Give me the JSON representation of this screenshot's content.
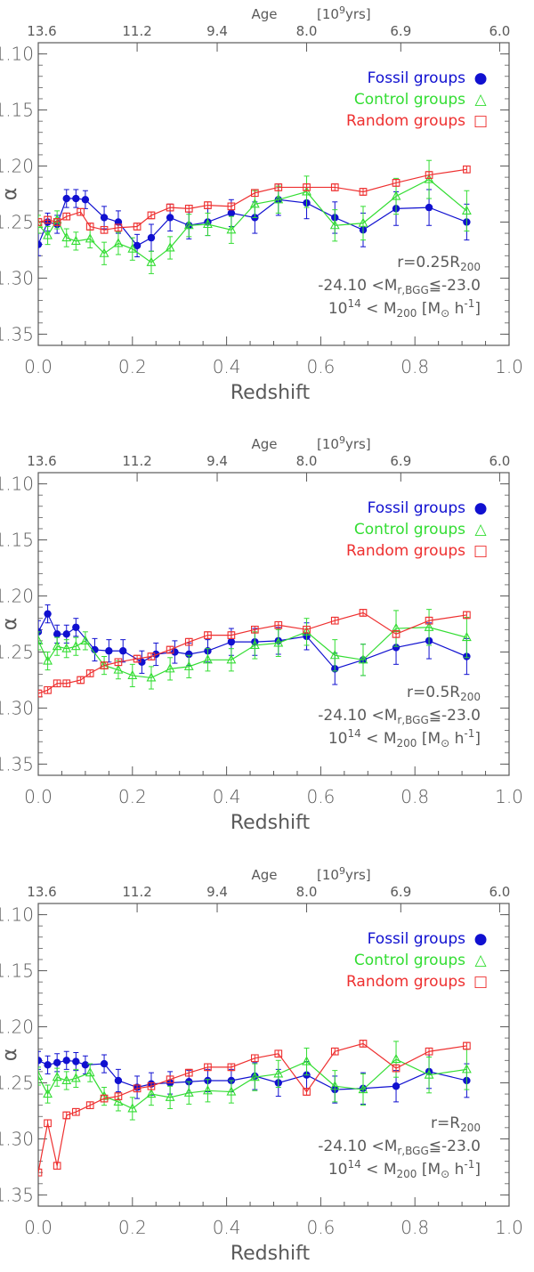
{
  "colors": {
    "fossil": "#1010d0",
    "control": "#33dd33",
    "random": "#ee3030",
    "axis": "#5a5a5a"
  },
  "chart_data": [
    {
      "type": "line",
      "xlabel": "Redshift",
      "ylabel": "α",
      "xlim": [
        0.0,
        1.0
      ],
      "ylim": [
        -1.36,
        -1.09
      ],
      "xticks": [
        "0.0",
        "0.2",
        "0.4",
        "0.6",
        "0.8",
        "1.0"
      ],
      "yticks": [
        "-1.10",
        "-1.15",
        "-1.20",
        "-1.25",
        "-1.30",
        "-1.35"
      ],
      "top_axis": {
        "label": "Age",
        "unit_pre": "[10",
        "unit_sup": "9",
        "unit_post": "yrs]",
        "ticks": [
          {
            "label": "13.6",
            "z": 0.0
          },
          {
            "label": "11.2",
            "z": 0.21
          },
          {
            "label": "9.4",
            "z": 0.38
          },
          {
            "label": "8.0",
            "z": 0.57
          },
          {
            "label": "6.9",
            "z": 0.77
          },
          {
            "label": "6.0",
            "z": 0.98
          }
        ]
      },
      "legend": {
        "placement": "top-right",
        "entries": [
          {
            "label": "Fossil groups",
            "marker": "●",
            "series": "fossil"
          },
          {
            "label": "Control groups",
            "marker": "△",
            "series": "control"
          },
          {
            "label": "Random groups",
            "marker": "□",
            "series": "random"
          }
        ]
      },
      "annotation": {
        "line1_pre": "r=0.25R",
        "line1_sub": "200",
        "line2": "-24.10 <M",
        "line2_sub": "r,BGG",
        "line2_post": "≦-23.0",
        "line3_pre": "10",
        "line3_sup": "14",
        "line3_mid": " < M",
        "line3_sub": "200",
        "line3_post": "  [M",
        "line3_sun": "⊙",
        "line3_end": " h",
        "line3_exp": "-1",
        "line3_close": "]"
      },
      "series": [
        {
          "name": "Fossil groups",
          "key": "fossil",
          "marker": "circle",
          "x": [
            0.0,
            0.02,
            0.04,
            0.06,
            0.08,
            0.1,
            0.14,
            0.17,
            0.21,
            0.24,
            0.28,
            0.32,
            0.36,
            0.41,
            0.46,
            0.51,
            0.57,
            0.63,
            0.69,
            0.76,
            0.83,
            0.91
          ],
          "y": [
            -1.27,
            -1.25,
            -1.252,
            -1.229,
            -1.229,
            -1.23,
            -1.246,
            -1.25,
            -1.271,
            -1.264,
            -1.246,
            -1.253,
            -1.25,
            -1.242,
            -1.246,
            -1.23,
            -1.233,
            -1.246,
            -1.257,
            -1.238,
            -1.237,
            -1.25
          ],
          "err": [
            0.01,
            0.008,
            0.008,
            0.008,
            0.008,
            0.008,
            0.01,
            0.01,
            0.01,
            0.012,
            0.012,
            0.012,
            0.012,
            0.012,
            0.014,
            0.014,
            0.014,
            0.014,
            0.015,
            0.015,
            0.016,
            0.016
          ]
        },
        {
          "name": "Control groups",
          "key": "control",
          "marker": "triangle",
          "x": [
            0.0,
            0.02,
            0.04,
            0.06,
            0.08,
            0.11,
            0.14,
            0.17,
            0.2,
            0.24,
            0.28,
            0.32,
            0.36,
            0.41,
            0.46,
            0.51,
            0.57,
            0.63,
            0.69,
            0.76,
            0.83,
            0.91
          ],
          "y": [
            -1.252,
            -1.262,
            -1.248,
            -1.264,
            -1.267,
            -1.265,
            -1.278,
            -1.269,
            -1.274,
            -1.286,
            -1.273,
            -1.253,
            -1.252,
            -1.257,
            -1.234,
            -1.23,
            -1.223,
            -1.253,
            -1.251,
            -1.227,
            -1.212,
            -1.24
          ],
          "err": [
            0.008,
            0.008,
            0.008,
            0.008,
            0.008,
            0.008,
            0.01,
            0.01,
            0.01,
            0.01,
            0.01,
            0.01,
            0.01,
            0.012,
            0.012,
            0.012,
            0.014,
            0.014,
            0.015,
            0.016,
            0.017,
            0.018
          ]
        },
        {
          "name": "Random groups",
          "key": "random",
          "marker": "square",
          "x": [
            0.0,
            0.02,
            0.04,
            0.06,
            0.09,
            0.11,
            0.14,
            0.17,
            0.21,
            0.24,
            0.28,
            0.32,
            0.36,
            0.41,
            0.46,
            0.51,
            0.57,
            0.63,
            0.69,
            0.76,
            0.83,
            0.91
          ],
          "y": [
            -1.25,
            -1.248,
            -1.25,
            -1.245,
            -1.241,
            -1.254,
            -1.257,
            -1.255,
            -1.254,
            -1.244,
            -1.237,
            -1.238,
            -1.235,
            -1.236,
            -1.224,
            -1.219,
            -1.219,
            -1.219,
            -1.223,
            -1.215,
            -1.208,
            -1.203
          ],
          "err": [
            0.003,
            0.003,
            0.003,
            0.003,
            0.003,
            0.003,
            0.003,
            0.003,
            0.003,
            0.003,
            0.003,
            0.003,
            0.003,
            0.003,
            0.003,
            0.003,
            0.003,
            0.003,
            0.003,
            0.003,
            0.003,
            0.003
          ]
        }
      ]
    },
    {
      "type": "line",
      "xlabel": "Redshift",
      "ylabel": "α",
      "xlim": [
        0.0,
        1.0
      ],
      "ylim": [
        -1.36,
        -1.09
      ],
      "xticks": [
        "0.0",
        "0.2",
        "0.4",
        "0.6",
        "0.8",
        "1.0"
      ],
      "yticks": [
        "-1.10",
        "-1.15",
        "-1.20",
        "-1.25",
        "-1.30",
        "-1.35"
      ],
      "top_axis": {
        "label": "Age",
        "unit_pre": "[10",
        "unit_sup": "9",
        "unit_post": "yrs]",
        "ticks": [
          {
            "label": "13.6",
            "z": 0.0
          },
          {
            "label": "11.2",
            "z": 0.21
          },
          {
            "label": "9.4",
            "z": 0.38
          },
          {
            "label": "8.0",
            "z": 0.57
          },
          {
            "label": "6.9",
            "z": 0.77
          },
          {
            "label": "6.0",
            "z": 0.98
          }
        ]
      },
      "legend": {
        "placement": "top-right",
        "entries": [
          {
            "label": "Fossil groups",
            "marker": "●",
            "series": "fossil"
          },
          {
            "label": "Control groups",
            "marker": "△",
            "series": "control"
          },
          {
            "label": "Random groups",
            "marker": "□",
            "series": "random"
          }
        ]
      },
      "annotation": {
        "line1_pre": "r=0.5R",
        "line1_sub": "200",
        "line2": "-24.10 <M",
        "line2_sub": "r,BGG",
        "line2_post": "≦-23.0",
        "line3_pre": "10",
        "line3_sup": "14",
        "line3_mid": " < M",
        "line3_sub": "200",
        "line3_post": "  [M",
        "line3_sun": "⊙",
        "line3_end": " h",
        "line3_exp": "-1",
        "line3_close": "]"
      },
      "series": [
        {
          "name": "Fossil groups",
          "key": "fossil",
          "marker": "circle",
          "x": [
            0.0,
            0.02,
            0.04,
            0.06,
            0.08,
            0.12,
            0.15,
            0.18,
            0.22,
            0.25,
            0.29,
            0.32,
            0.36,
            0.41,
            0.46,
            0.51,
            0.57,
            0.63,
            0.69,
            0.76,
            0.83,
            0.91
          ],
          "y": [
            -1.232,
            -1.216,
            -1.234,
            -1.234,
            -1.228,
            -1.248,
            -1.249,
            -1.249,
            -1.259,
            -1.252,
            -1.25,
            -1.252,
            -1.249,
            -1.241,
            -1.241,
            -1.24,
            -1.236,
            -1.265,
            -1.257,
            -1.246,
            -1.24,
            -1.254
          ],
          "err": [
            0.01,
            0.008,
            0.008,
            0.008,
            0.008,
            0.01,
            0.01,
            0.01,
            0.01,
            0.01,
            0.01,
            0.01,
            0.01,
            0.012,
            0.012,
            0.012,
            0.012,
            0.014,
            0.014,
            0.015,
            0.016,
            0.016
          ]
        },
        {
          "name": "Control groups",
          "key": "control",
          "marker": "triangle",
          "x": [
            0.0,
            0.02,
            0.04,
            0.06,
            0.08,
            0.1,
            0.14,
            0.17,
            0.2,
            0.24,
            0.28,
            0.32,
            0.36,
            0.41,
            0.46,
            0.51,
            0.57,
            0.63,
            0.69,
            0.76,
            0.83,
            0.91
          ],
          "y": [
            -1.24,
            -1.258,
            -1.245,
            -1.247,
            -1.245,
            -1.24,
            -1.262,
            -1.266,
            -1.271,
            -1.273,
            -1.265,
            -1.263,
            -1.257,
            -1.257,
            -1.244,
            -1.242,
            -1.232,
            -1.253,
            -1.257,
            -1.229,
            -1.228,
            -1.237
          ],
          "err": [
            0.008,
            0.008,
            0.008,
            0.008,
            0.008,
            0.008,
            0.008,
            0.008,
            0.01,
            0.01,
            0.01,
            0.01,
            0.01,
            0.01,
            0.012,
            0.012,
            0.012,
            0.014,
            0.014,
            0.016,
            0.016,
            0.018
          ]
        },
        {
          "name": "Random groups",
          "key": "random",
          "marker": "square",
          "x": [
            0.0,
            0.02,
            0.04,
            0.06,
            0.09,
            0.11,
            0.14,
            0.17,
            0.21,
            0.24,
            0.28,
            0.32,
            0.36,
            0.41,
            0.46,
            0.51,
            0.57,
            0.63,
            0.69,
            0.76,
            0.83,
            0.91
          ],
          "y": [
            -1.287,
            -1.284,
            -1.278,
            -1.278,
            -1.275,
            -1.269,
            -1.262,
            -1.259,
            -1.256,
            -1.254,
            -1.248,
            -1.241,
            -1.235,
            -1.235,
            -1.23,
            -1.226,
            -1.23,
            -1.222,
            -1.215,
            -1.234,
            -1.222,
            -1.217
          ],
          "err": [
            0.003,
            0.003,
            0.003,
            0.003,
            0.003,
            0.003,
            0.003,
            0.003,
            0.003,
            0.003,
            0.003,
            0.003,
            0.003,
            0.003,
            0.003,
            0.003,
            0.003,
            0.003,
            0.003,
            0.003,
            0.003,
            0.003
          ]
        }
      ]
    },
    {
      "type": "line",
      "xlabel": "Redshift",
      "ylabel": "α",
      "xlim": [
        0.0,
        1.0
      ],
      "ylim": [
        -1.36,
        -1.09
      ],
      "xticks": [
        "0.0",
        "0.2",
        "0.4",
        "0.6",
        "0.8",
        "1.0"
      ],
      "yticks": [
        "-1.10",
        "-1.15",
        "-1.20",
        "-1.25",
        "-1.30",
        "-1.35"
      ],
      "top_axis": {
        "label": "Age",
        "unit_pre": "[10",
        "unit_sup": "9",
        "unit_post": "yrs]",
        "ticks": [
          {
            "label": "13.6",
            "z": 0.0
          },
          {
            "label": "11.2",
            "z": 0.21
          },
          {
            "label": "9.4",
            "z": 0.38
          },
          {
            "label": "8.0",
            "z": 0.57
          },
          {
            "label": "6.9",
            "z": 0.77
          },
          {
            "label": "6.0",
            "z": 0.98
          }
        ]
      },
      "legend": {
        "placement": "top-right",
        "entries": [
          {
            "label": "Fossil groups",
            "marker": "●",
            "series": "fossil"
          },
          {
            "label": "Control groups",
            "marker": "△",
            "series": "control"
          },
          {
            "label": "Random groups",
            "marker": "□",
            "series": "random"
          }
        ]
      },
      "annotation": {
        "line1_pre": "r=R",
        "line1_sub": "200",
        "line2": "-24.10 <M",
        "line2_sub": "r,BGG",
        "line2_post": "≦-23.0",
        "line3_pre": "10",
        "line3_sup": "14",
        "line3_mid": " < M",
        "line3_sub": "200",
        "line3_post": "  [M",
        "line3_sun": "⊙",
        "line3_end": " h",
        "line3_exp": "-1",
        "line3_close": "]"
      },
      "series": [
        {
          "name": "Fossil groups",
          "key": "fossil",
          "marker": "circle",
          "x": [
            0.0,
            0.02,
            0.04,
            0.06,
            0.08,
            0.1,
            0.14,
            0.17,
            0.21,
            0.24,
            0.28,
            0.32,
            0.36,
            0.41,
            0.46,
            0.51,
            0.57,
            0.63,
            0.69,
            0.76,
            0.83,
            0.91
          ],
          "y": [
            -1.23,
            -1.234,
            -1.232,
            -1.23,
            -1.231,
            -1.234,
            -1.233,
            -1.248,
            -1.254,
            -1.251,
            -1.25,
            -1.249,
            -1.248,
            -1.248,
            -1.244,
            -1.25,
            -1.243,
            -1.256,
            -1.255,
            -1.253,
            -1.24,
            -1.248
          ],
          "err": [
            0.008,
            0.008,
            0.008,
            0.008,
            0.008,
            0.008,
            0.008,
            0.01,
            0.01,
            0.01,
            0.01,
            0.01,
            0.01,
            0.01,
            0.012,
            0.012,
            0.012,
            0.012,
            0.014,
            0.014,
            0.015,
            0.015
          ]
        },
        {
          "name": "Control groups",
          "key": "control",
          "marker": "triangle",
          "x": [
            0.0,
            0.02,
            0.04,
            0.06,
            0.08,
            0.11,
            0.14,
            0.17,
            0.2,
            0.24,
            0.28,
            0.32,
            0.36,
            0.41,
            0.46,
            0.51,
            0.57,
            0.63,
            0.69,
            0.76,
            0.83,
            0.91
          ],
          "y": [
            -1.244,
            -1.26,
            -1.245,
            -1.248,
            -1.246,
            -1.241,
            -1.262,
            -1.267,
            -1.273,
            -1.26,
            -1.263,
            -1.259,
            -1.257,
            -1.258,
            -1.245,
            -1.242,
            -1.231,
            -1.253,
            -1.256,
            -1.229,
            -1.243,
            -1.238
          ],
          "err": [
            0.008,
            0.008,
            0.008,
            0.008,
            0.008,
            0.008,
            0.008,
            0.008,
            0.01,
            0.01,
            0.01,
            0.01,
            0.01,
            0.01,
            0.012,
            0.012,
            0.012,
            0.014,
            0.014,
            0.016,
            0.016,
            0.018
          ]
        },
        {
          "name": "Random groups",
          "key": "random",
          "marker": "square",
          "x": [
            0.0,
            0.02,
            0.04,
            0.06,
            0.08,
            0.11,
            0.14,
            0.17,
            0.21,
            0.24,
            0.28,
            0.32,
            0.36,
            0.41,
            0.46,
            0.51,
            0.57,
            0.63,
            0.69,
            0.76,
            0.83,
            0.91
          ],
          "y": [
            -1.33,
            -1.286,
            -1.324,
            -1.279,
            -1.276,
            -1.27,
            -1.264,
            -1.262,
            -1.255,
            -1.253,
            -1.247,
            -1.241,
            -1.236,
            -1.236,
            -1.228,
            -1.224,
            -1.258,
            -1.222,
            -1.215,
            -1.237,
            -1.222,
            -1.217
          ],
          "err": [
            0.003,
            0.003,
            0.003,
            0.003,
            0.003,
            0.003,
            0.003,
            0.003,
            0.003,
            0.003,
            0.003,
            0.003,
            0.003,
            0.003,
            0.003,
            0.003,
            0.003,
            0.003,
            0.003,
            0.003,
            0.003,
            0.003
          ]
        }
      ]
    }
  ]
}
